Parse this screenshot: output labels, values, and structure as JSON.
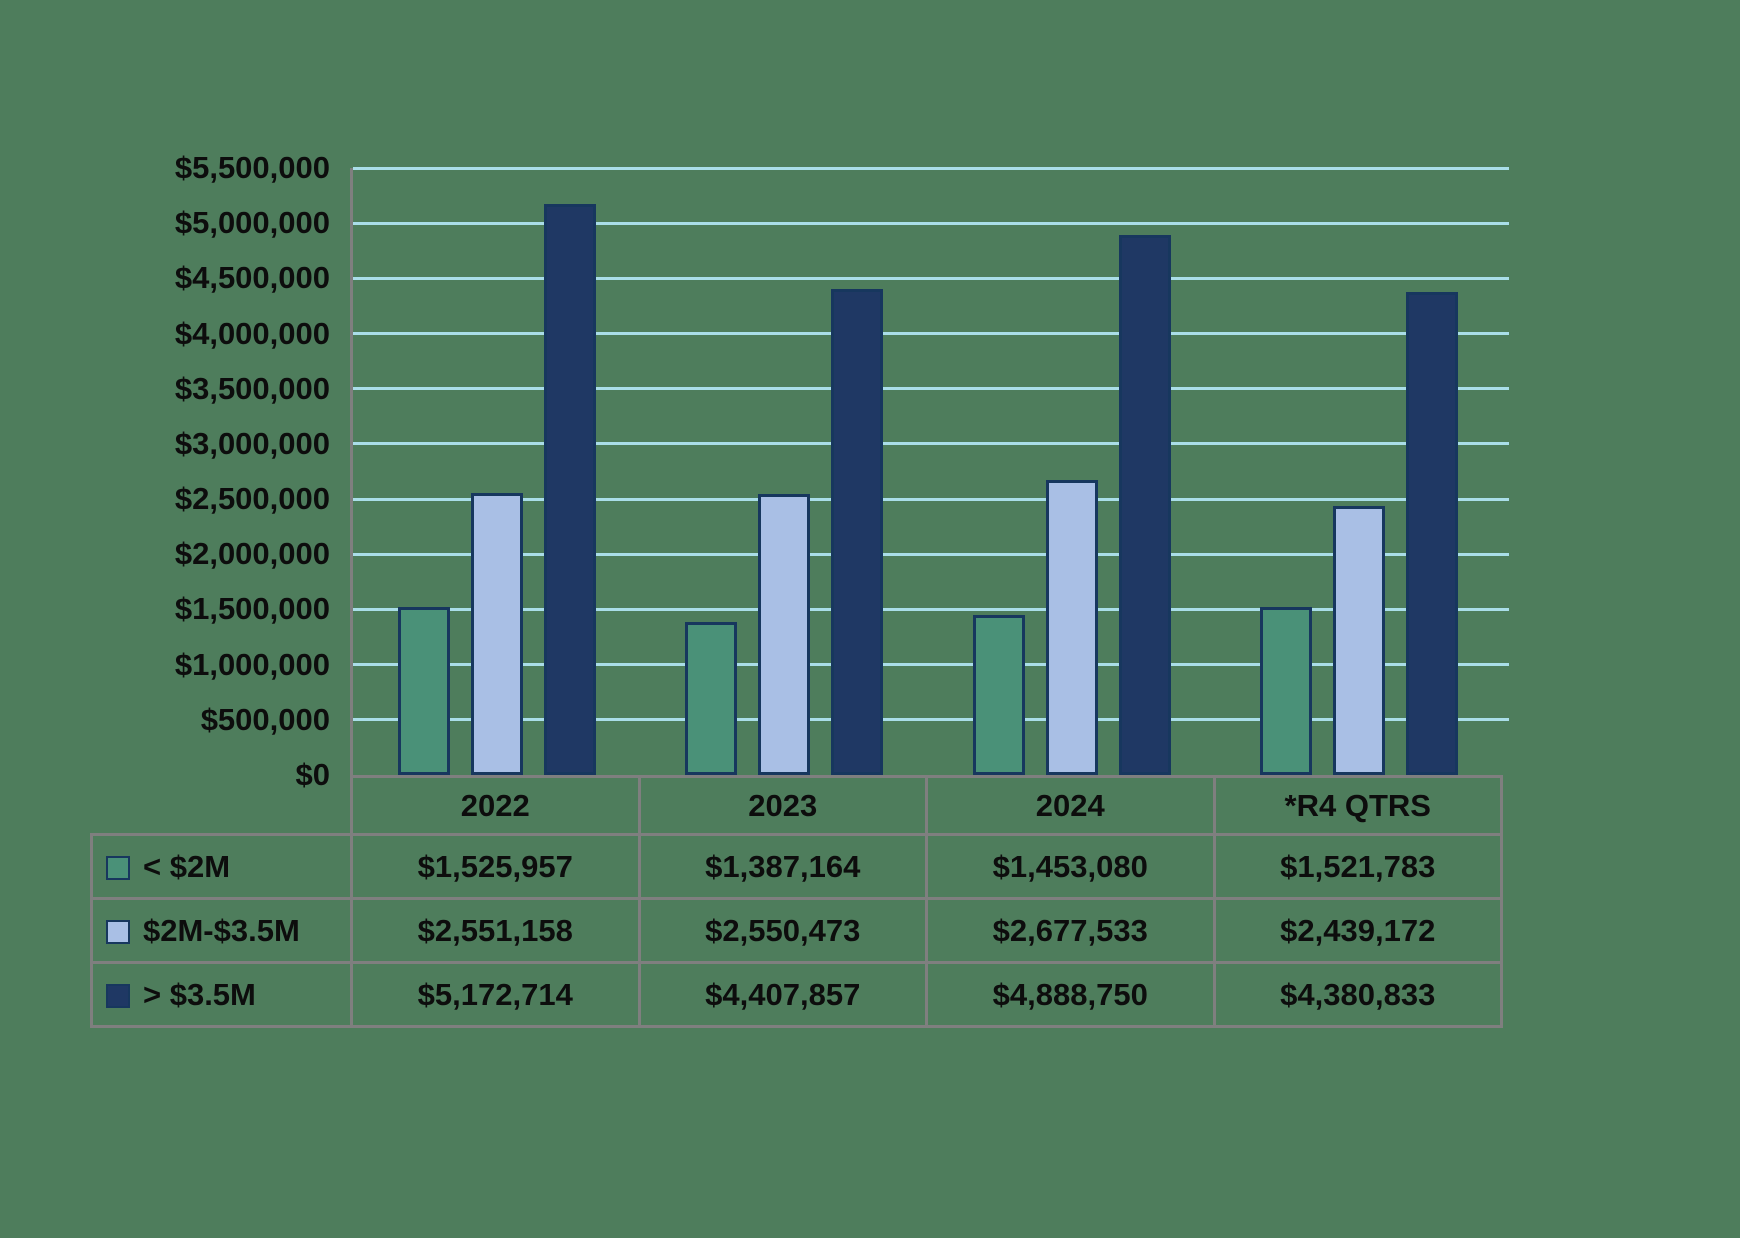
{
  "page": {
    "background_color": "#4e7d5c",
    "text_color": "#0d0d0d",
    "table_border_color": "#7f7f7f"
  },
  "chart_data": {
    "type": "bar",
    "title": "",
    "xlabel": "",
    "ylabel": "",
    "categories": [
      "2022",
      "2023",
      "2024",
      "*R4 QTRS"
    ],
    "series": [
      {
        "name": "< $2M",
        "color": "#4a9178",
        "values": [
          1525957,
          1387164,
          1453080,
          1521783
        ],
        "formatted": [
          "$1,525,957",
          "$1,387,164",
          "$1,453,080",
          "$1,521,783"
        ]
      },
      {
        "name": "$2M-$3.5M",
        "color": "#a9bfe5",
        "values": [
          2551158,
          2550473,
          2677533,
          2439172
        ],
        "formatted": [
          "$2,551,158",
          "$2,550,473",
          "$2,677,533",
          "$2,439,172"
        ]
      },
      {
        "name": "> $3.5M",
        "color": "#1f3864",
        "values": [
          5172714,
          4407857,
          4888750,
          4380833
        ],
        "formatted": [
          "$5,172,714",
          "$4,407,857",
          "$4,888,750",
          "$4,380,833"
        ]
      }
    ],
    "ylim": [
      0,
      5500000
    ],
    "ytick_interval": 500000,
    "ytick_labels": [
      "$0",
      "$500,000",
      "$1,000,000",
      "$1,500,000",
      "$2,000,000",
      "$2,500,000",
      "$3,000,000",
      "$3,500,000",
      "$4,000,000",
      "$4,500,000",
      "$5,000,000",
      "$5,500,000"
    ],
    "grid": true,
    "gridline_color": "#aadee8",
    "bar_border_color": "#17375e",
    "legend_position": "table-rows-left"
  }
}
